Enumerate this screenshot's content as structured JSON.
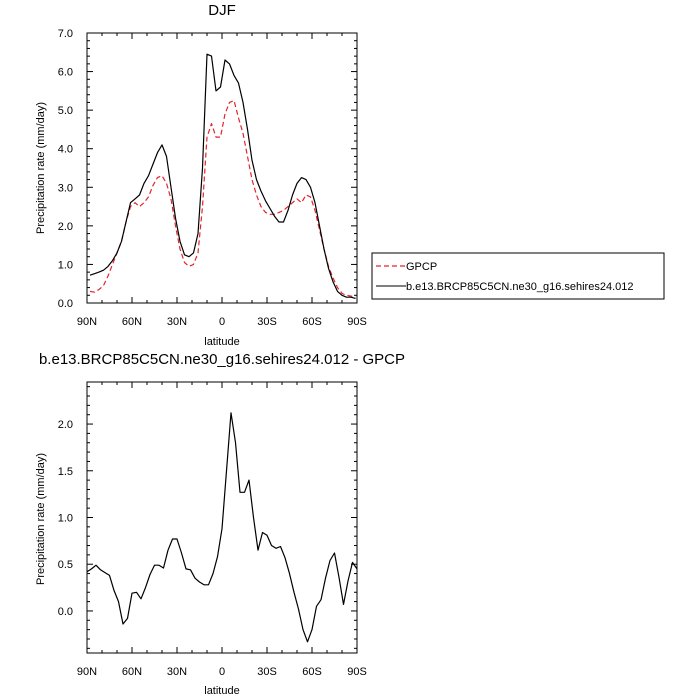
{
  "chart_data": [
    {
      "type": "line",
      "title": "DJF",
      "xlabel": "latitude",
      "ylabel": "Precipitation rate (mm/day)",
      "xlim": [
        90,
        -90
      ],
      "ylim": [
        0,
        7
      ],
      "x_ticks": [
        90,
        60,
        30,
        0,
        -30,
        -60,
        -90
      ],
      "x_tick_labels": [
        "90N",
        "60N",
        "30N",
        "0",
        "30S",
        "60S",
        "90S"
      ],
      "y_ticks": [
        0,
        1,
        2,
        3,
        4,
        5,
        6,
        7
      ],
      "y_tick_labels": [
        "0.0",
        "1.0",
        "2.0",
        "3.0",
        "4.0",
        "5.0",
        "6.0",
        "7.0"
      ],
      "legend_position": "right",
      "series": [
        {
          "name": "GPCP",
          "color": "#e3242b",
          "dash": "dashed",
          "x": [
            88,
            85,
            82,
            79,
            76,
            73,
            70,
            67,
            64,
            61,
            58,
            55,
            52,
            49,
            46,
            43,
            40,
            37,
            34,
            31,
            28,
            25,
            22,
            19,
            16,
            13,
            10,
            7,
            4,
            1,
            -2,
            -5,
            -8,
            -11,
            -14,
            -17,
            -20,
            -23,
            -26,
            -29,
            -32,
            -35,
            -38,
            -41,
            -44,
            -47,
            -50,
            -53,
            -56,
            -59,
            -62,
            -65,
            -68,
            -71,
            -74,
            -77,
            -80,
            -83,
            -86,
            -89
          ],
          "y": [
            0.3,
            0.28,
            0.35,
            0.45,
            0.7,
            1.0,
            1.3,
            1.6,
            2.1,
            2.5,
            2.6,
            2.5,
            2.6,
            2.75,
            3.05,
            3.25,
            3.3,
            3.1,
            2.7,
            2.0,
            1.4,
            1.05,
            0.95,
            1.0,
            1.3,
            2.5,
            4.3,
            4.65,
            4.3,
            4.3,
            4.9,
            5.2,
            5.25,
            4.8,
            4.4,
            3.8,
            3.2,
            2.8,
            2.5,
            2.35,
            2.3,
            2.3,
            2.35,
            2.4,
            2.5,
            2.6,
            2.7,
            2.6,
            2.8,
            2.75,
            2.4,
            1.9,
            1.4,
            0.95,
            0.65,
            0.4,
            0.25,
            0.2,
            0.18,
            0.15
          ]
        },
        {
          "name": "b.e13.BRCP85C5CN.ne30_g16.sehires24.012",
          "color": "#000000",
          "dash": "solid",
          "x": [
            88,
            85,
            82,
            79,
            76,
            73,
            70,
            67,
            64,
            61,
            58,
            55,
            52,
            49,
            46,
            43,
            40,
            37,
            34,
            31,
            28,
            25,
            22,
            19,
            16,
            13,
            10,
            7,
            4,
            1,
            -2,
            -5,
            -8,
            -11,
            -14,
            -17,
            -20,
            -23,
            -26,
            -29,
            -32,
            -35,
            -38,
            -41,
            -44,
            -47,
            -50,
            -53,
            -56,
            -59,
            -62,
            -65,
            -68,
            -71,
            -74,
            -77,
            -80,
            -83,
            -86,
            -89
          ],
          "y": [
            0.72,
            0.76,
            0.8,
            0.85,
            0.95,
            1.1,
            1.3,
            1.6,
            2.1,
            2.6,
            2.7,
            2.8,
            3.1,
            3.3,
            3.6,
            3.9,
            4.1,
            3.8,
            3.0,
            2.2,
            1.6,
            1.25,
            1.2,
            1.3,
            1.8,
            3.5,
            6.45,
            6.4,
            5.5,
            5.6,
            6.3,
            6.2,
            5.9,
            5.7,
            5.2,
            4.5,
            3.7,
            3.2,
            2.9,
            2.65,
            2.45,
            2.25,
            2.1,
            2.1,
            2.4,
            2.8,
            3.1,
            3.25,
            3.2,
            3.0,
            2.6,
            2.0,
            1.4,
            0.9,
            0.55,
            0.3,
            0.2,
            0.15,
            0.15,
            0.12
          ]
        }
      ]
    },
    {
      "type": "line",
      "title": "b.e13.BRCP85C5CN.ne30_g16.sehires24.012 - GPCP",
      "xlabel": "latitude",
      "ylabel": "Precipitation rate (mm/day)",
      "xlim": [
        90,
        -90
      ],
      "ylim": [
        -0.45,
        2.45
      ],
      "x_ticks": [
        90,
        60,
        30,
        0,
        -30,
        -60,
        -90
      ],
      "x_tick_labels": [
        "90N",
        "60N",
        "30N",
        "0",
        "30S",
        "60S",
        "90S"
      ],
      "y_ticks": [
        0,
        0.5,
        1,
        1.5,
        2
      ],
      "y_tick_labels": [
        "0.0",
        "0.5",
        "1.0",
        "1.5",
        "2.0"
      ],
      "series": [
        {
          "name": "",
          "color": "#000000",
          "dash": "solid",
          "x": [
            90,
            87,
            84,
            81,
            78,
            75,
            72,
            69,
            66,
            63,
            60,
            57,
            54,
            51,
            48,
            45,
            42,
            39,
            36,
            33,
            30,
            27,
            24,
            21,
            18,
            15,
            12,
            9,
            6,
            3,
            0,
            -3,
            -6,
            -9,
            -12,
            -15,
            -18,
            -21,
            -24,
            -27,
            -30,
            -33,
            -36,
            -39,
            -42,
            -45,
            -48,
            -51,
            -54,
            -57,
            -60,
            -63,
            -66,
            -69,
            -72,
            -75,
            -78,
            -81,
            -84,
            -87,
            -90
          ],
          "y": [
            0.42,
            0.45,
            0.49,
            0.44,
            0.41,
            0.38,
            0.22,
            0.1,
            -0.14,
            -0.08,
            0.19,
            0.2,
            0.13,
            0.25,
            0.39,
            0.49,
            0.49,
            0.46,
            0.65,
            0.77,
            0.77,
            0.62,
            0.45,
            0.44,
            0.35,
            0.31,
            0.28,
            0.28,
            0.4,
            0.58,
            0.88,
            1.5,
            2.12,
            1.8,
            1.27,
            1.27,
            1.4,
            1.0,
            0.65,
            0.84,
            0.81,
            0.7,
            0.67,
            0.69,
            0.57,
            0.4,
            0.2,
            0.02,
            -0.2,
            -0.33,
            -0.2,
            0.05,
            0.12,
            0.35,
            0.54,
            0.62,
            0.36,
            0.07,
            0.32,
            0.52,
            0.45
          ]
        }
      ]
    }
  ]
}
